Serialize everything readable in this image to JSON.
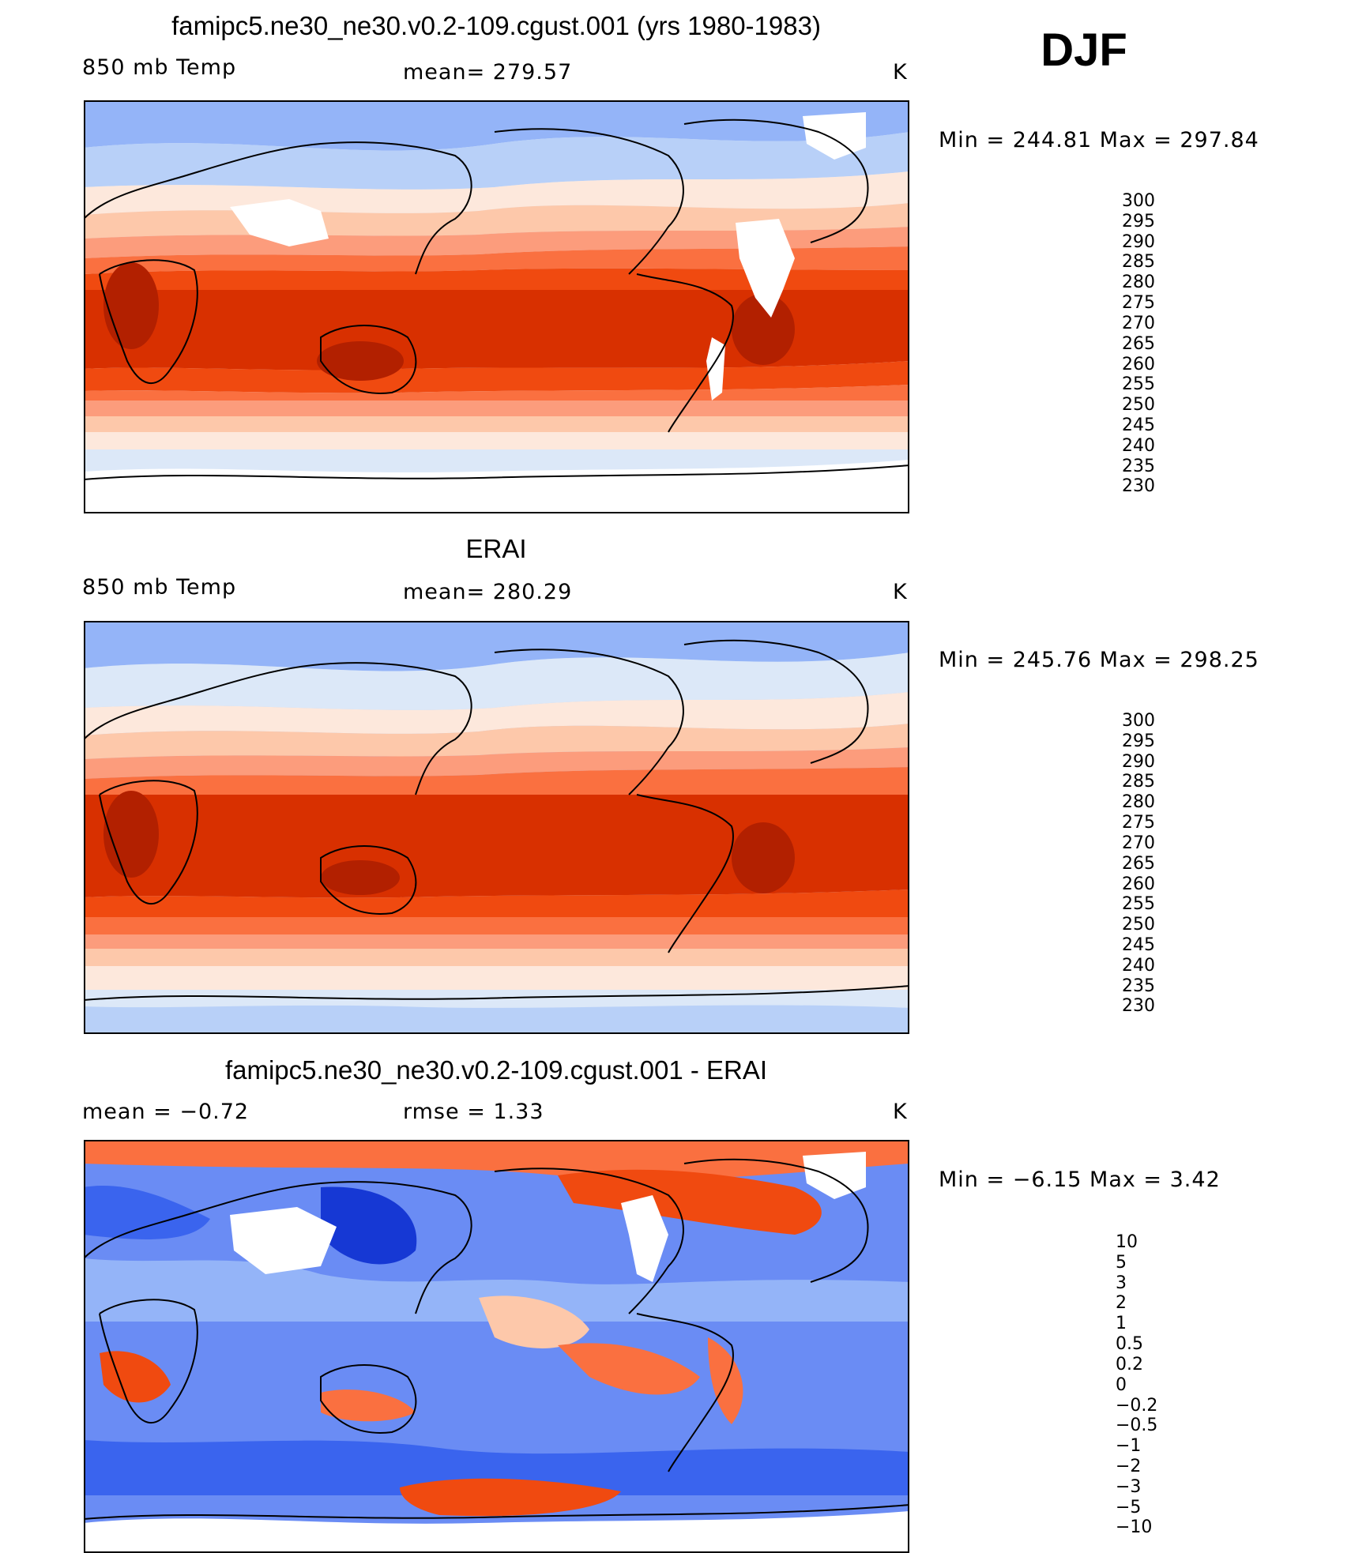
{
  "season": "DJF",
  "panels": [
    {
      "title": "famipc5.ne30_ne30.v0.2-109.cgust.001 (yrs 1980-1983)",
      "left_label": "850 mb Temp",
      "center_label": "mean=  279.57",
      "units": "K",
      "minmax": "Min  =  244.81  Max  =  297.84",
      "colorbar": {
        "labels": [
          "300",
          "295",
          "290",
          "285",
          "280",
          "275",
          "270",
          "265",
          "260",
          "255",
          "250",
          "245",
          "240",
          "235",
          "230"
        ],
        "colors": [
          "#8b0000",
          "#b22000",
          "#d83000",
          "#f04a10",
          "#fa7040",
          "#fc9c7c",
          "#fdc8aa",
          "#fde8dc",
          "#dce8f8",
          "#b8d0f8",
          "#94b4f8",
          "#6a8cf4",
          "#3a64ee",
          "#1638d4",
          "#0a1aa8",
          "#020880"
        ]
      },
      "map_note": "model"
    },
    {
      "title": "ERAI",
      "left_label": "850 mb Temp",
      "center_label": "mean=  280.29",
      "units": "K",
      "minmax": "Min  =  245.76  Max  =  298.25",
      "colorbar": {
        "labels": [
          "300",
          "295",
          "290",
          "285",
          "280",
          "275",
          "270",
          "265",
          "260",
          "255",
          "250",
          "245",
          "240",
          "235",
          "230"
        ],
        "colors": [
          "#8b0000",
          "#b22000",
          "#d83000",
          "#f04a10",
          "#fa7040",
          "#fc9c7c",
          "#fdc8aa",
          "#fde8dc",
          "#dce8f8",
          "#b8d0f8",
          "#94b4f8",
          "#6a8cf4",
          "#3a64ee",
          "#1638d4",
          "#0a1aa8",
          "#020880"
        ]
      },
      "map_note": "obs"
    },
    {
      "title": "famipc5.ne30_ne30.v0.2-109.cgust.001 - ERAI",
      "left_label": "mean =    −0.72",
      "center_label": "rmse =     1.33",
      "units": "K",
      "minmax": "Min  =    −6.15  Max  =      3.42",
      "colorbar": {
        "labels": [
          "10",
          "5",
          "3",
          "2",
          "1",
          "0.5",
          "0.2",
          "0",
          "−0.2",
          "−0.5",
          "−1",
          "−2",
          "−3",
          "−5",
          "−10"
        ],
        "colors": [
          "#8b0000",
          "#b22000",
          "#d83000",
          "#f04a10",
          "#fa7040",
          "#fc9c7c",
          "#fdc8aa",
          "#fde8dc",
          "#dce8f8",
          "#b8d0f8",
          "#94b4f8",
          "#6a8cf4",
          "#3a64ee",
          "#1638d4",
          "#0a1aa8",
          "#020880"
        ]
      },
      "map_note": "diff"
    }
  ]
}
